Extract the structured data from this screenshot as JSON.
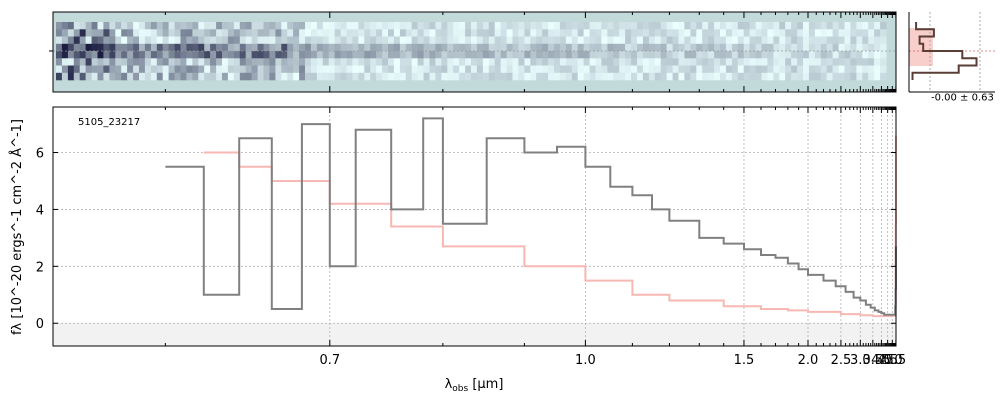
{
  "chart_data": [
    {
      "type": "heatmap",
      "panel": "2d-spectrum",
      "description_colormap": "bone_r",
      "background_color": "#c2dad9",
      "x_range": [
        0.55,
        5.52
      ],
      "x_scale": "reciprocal-power",
      "rows": 8
    },
    {
      "type": "line",
      "panel": "1d-spectrum",
      "id_label": "5105_23217",
      "xlabel_prefix": "λ",
      "xlabel_sub": "obs",
      "xlabel_suffix": " [μm]",
      "ylabel": "fλ [10^-20 ergs^-1 cm^-2 Å^-1]",
      "xlim": [
        0.55,
        5.52
      ],
      "ylim": [
        -0.8,
        7.6
      ],
      "x_ticks": [
        0.7,
        1.0,
        1.5,
        2.0,
        2.5,
        3.0,
        3.5,
        4.0,
        4.5,
        5.0,
        5.5
      ],
      "x_tick_labels": [
        "0.7",
        "1.0",
        "1.5",
        "2.0",
        "2.5",
        "3.0",
        "3.5",
        "4.0",
        "4.5",
        "5.0",
        "5.5"
      ],
      "y_ticks": [
        0,
        2,
        4,
        6
      ],
      "y_tick_labels": [
        "0",
        "2",
        "4",
        "6"
      ],
      "grid": true,
      "series": [
        {
          "role": "flux",
          "color": "#808080",
          "x": [
            0.6,
            0.62,
            0.64,
            0.66,
            0.68,
            0.7,
            0.72,
            0.75,
            0.78,
            0.8,
            0.85,
            0.9,
            0.95,
            1.0,
            1.05,
            1.1,
            1.15,
            1.2,
            1.3,
            1.4,
            1.5,
            1.6,
            1.7,
            1.8,
            1.9,
            2.0,
            2.2,
            2.4,
            2.6,
            2.8,
            3.0,
            3.2,
            3.4,
            3.6,
            3.8,
            4.0,
            4.2,
            4.4,
            4.6,
            4.8,
            5.0,
            5.2,
            5.4,
            5.45,
            5.5
          ],
          "y": [
            5.5,
            1.0,
            6.5,
            0.5,
            7.0,
            2.0,
            6.8,
            4.0,
            7.2,
            3.5,
            6.5,
            6.0,
            6.2,
            5.5,
            4.8,
            4.5,
            4.0,
            3.6,
            3.0,
            2.8,
            2.6,
            2.4,
            2.3,
            2.1,
            1.9,
            1.7,
            1.5,
            1.3,
            1.1,
            0.9,
            0.8,
            0.65,
            0.55,
            0.45,
            0.4,
            0.35,
            0.3,
            0.3,
            0.3,
            0.3,
            0.3,
            0.3,
            0.6,
            1.2,
            2.7
          ]
        },
        {
          "role": "uncertainty",
          "color": "#f7b7b2",
          "x": [
            0.62,
            0.64,
            0.66,
            0.7,
            0.75,
            0.8,
            0.9,
            1.0,
            1.1,
            1.2,
            1.4,
            1.6,
            1.8,
            2.0,
            2.5,
            3.0,
            3.5,
            4.0,
            4.5,
            5.0,
            5.3,
            5.45,
            5.48,
            5.5
          ],
          "y": [
            6.0,
            5.5,
            5.0,
            4.2,
            3.4,
            2.7,
            2.0,
            1.5,
            1.0,
            0.8,
            0.6,
            0.5,
            0.45,
            0.4,
            0.32,
            0.28,
            0.25,
            0.25,
            0.25,
            0.26,
            0.3,
            0.7,
            3.5,
            6.6
          ]
        }
      ]
    },
    {
      "type": "line",
      "panel": "profile",
      "annotation": "-0.00 ± 0.63",
      "series": [
        {
          "role": "profile",
          "color": "#5a3d35",
          "x": [
            0.1,
            0.35,
            0.15,
            0.2,
            0.75,
            0.95,
            0.7,
            0.05
          ],
          "y": [
            0,
            1,
            2,
            3,
            4,
            5,
            6,
            7
          ]
        }
      ]
    }
  ]
}
